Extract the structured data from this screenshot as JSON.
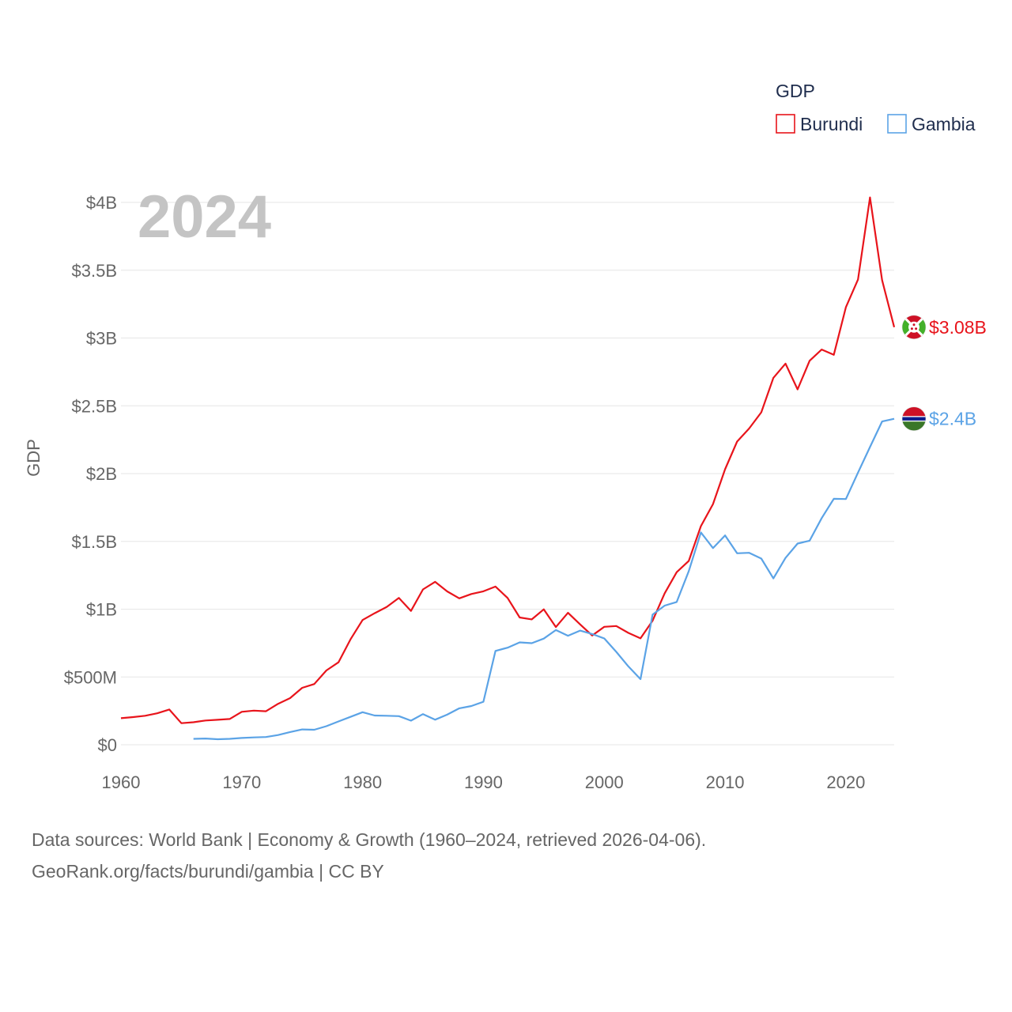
{
  "chart_data": {
    "type": "line",
    "title": "",
    "year_label": "2024",
    "ylabel": "GDP",
    "xlabel": "",
    "xlim": [
      1960,
      2024
    ],
    "ylim": [
      0,
      4000000000
    ],
    "x_ticks": [
      {
        "value": 1960,
        "label": "1960"
      },
      {
        "value": 1970,
        "label": "1970"
      },
      {
        "value": 1980,
        "label": "1980"
      },
      {
        "value": 1990,
        "label": "1990"
      },
      {
        "value": 2000,
        "label": "2000"
      },
      {
        "value": 2010,
        "label": "2010"
      },
      {
        "value": 2020,
        "label": "2020"
      }
    ],
    "y_ticks": [
      {
        "value": 0,
        "label": "$0"
      },
      {
        "value": 500000000,
        "label": "$500M"
      },
      {
        "value": 1000000000,
        "label": "$1B"
      },
      {
        "value": 1500000000,
        "label": "$1.5B"
      },
      {
        "value": 2000000000,
        "label": "$2B"
      },
      {
        "value": 2500000000,
        "label": "$2.5B"
      },
      {
        "value": 3000000000,
        "label": "$3B"
      },
      {
        "value": 3500000000,
        "label": "$3.5B"
      },
      {
        "value": 4000000000,
        "label": "$4B"
      }
    ],
    "legend": {
      "title": "GDP",
      "position": "top-right"
    },
    "series": [
      {
        "name": "Burundi",
        "color": "#e8141b",
        "end_label": "$3.08B",
        "flag": "burundi-flag-icon",
        "x": [
          1960,
          1961,
          1962,
          1963,
          1964,
          1965,
          1966,
          1967,
          1968,
          1969,
          1970,
          1971,
          1972,
          1973,
          1974,
          1975,
          1976,
          1977,
          1978,
          1979,
          1980,
          1981,
          1982,
          1983,
          1984,
          1985,
          1986,
          1987,
          1988,
          1989,
          1990,
          1991,
          1992,
          1993,
          1994,
          1995,
          1996,
          1997,
          1998,
          1999,
          2000,
          2001,
          2002,
          2003,
          2004,
          2005,
          2006,
          2007,
          2008,
          2009,
          2010,
          2011,
          2012,
          2013,
          2014,
          2015,
          2016,
          2017,
          2018,
          2019,
          2020,
          2021,
          2022,
          2023,
          2024
        ],
        "values": [
          196000000,
          204000000,
          214000000,
          232000000,
          260000000,
          159000000,
          166000000,
          179000000,
          184000000,
          190000000,
          243000000,
          252000000,
          247000000,
          302000000,
          344000000,
          420000000,
          448000000,
          548000000,
          608000000,
          777000000,
          920000000,
          970000000,
          1017000000,
          1083000000,
          987000000,
          1146000000,
          1202000000,
          1131000000,
          1080000000,
          1112000000,
          1132000000,
          1167000000,
          1083000000,
          939000000,
          925000000,
          999000000,
          868000000,
          973000000,
          888000000,
          806000000,
          870000000,
          876000000,
          825000000,
          785000000,
          915000000,
          1117000000,
          1273000000,
          1356000000,
          1612000000,
          1775000000,
          2032000000,
          2236000000,
          2333000000,
          2452000000,
          2706000000,
          2811000000,
          2621000000,
          2832000000,
          2915000000,
          2876000000,
          3227000000,
          3431000000,
          4037000000,
          3427000000,
          3080000000
        ]
      },
      {
        "name": "Gambia",
        "color": "#5ba3e6",
        "end_label": "$2.4B",
        "flag": "gambia-flag-icon",
        "x": [
          1966,
          1967,
          1968,
          1969,
          1970,
          1971,
          1972,
          1973,
          1974,
          1975,
          1976,
          1977,
          1978,
          1979,
          1980,
          1981,
          1982,
          1983,
          1984,
          1985,
          1986,
          1987,
          1988,
          1989,
          1990,
          1991,
          1992,
          1993,
          1994,
          1995,
          1996,
          1997,
          1998,
          1999,
          2000,
          2001,
          2002,
          2003,
          2004,
          2005,
          2006,
          2007,
          2008,
          2009,
          2010,
          2011,
          2012,
          2013,
          2014,
          2015,
          2016,
          2017,
          2018,
          2019,
          2020,
          2021,
          2022,
          2023,
          2024
        ],
        "values": [
          44000000,
          46000000,
          41000000,
          44000000,
          50000000,
          54000000,
          57000000,
          72000000,
          94000000,
          113000000,
          111000000,
          137000000,
          172000000,
          206000000,
          240000000,
          216000000,
          214000000,
          211000000,
          178000000,
          226000000,
          185000000,
          222000000,
          269000000,
          286000000,
          317000000,
          692000000,
          716000000,
          755000000,
          749000000,
          783000000,
          846000000,
          804000000,
          842000000,
          817000000,
          784000000,
          685000000,
          578000000,
          484000000,
          960000000,
          1026000000,
          1053000000,
          1281000000,
          1566000000,
          1451000000,
          1544000000,
          1412000000,
          1416000000,
          1373000000,
          1227000000,
          1378000000,
          1484000000,
          1505000000,
          1672000000,
          1814000000,
          1812000000,
          2007000000,
          2196000000,
          2384000000,
          2404000000
        ]
      }
    ]
  },
  "footer": {
    "line1": "Data sources: World Bank | Economy & Growth (1960–2024, retrieved 2026-04-06).",
    "line2": "GeoRank.org/facts/burundi/gambia | CC BY"
  }
}
